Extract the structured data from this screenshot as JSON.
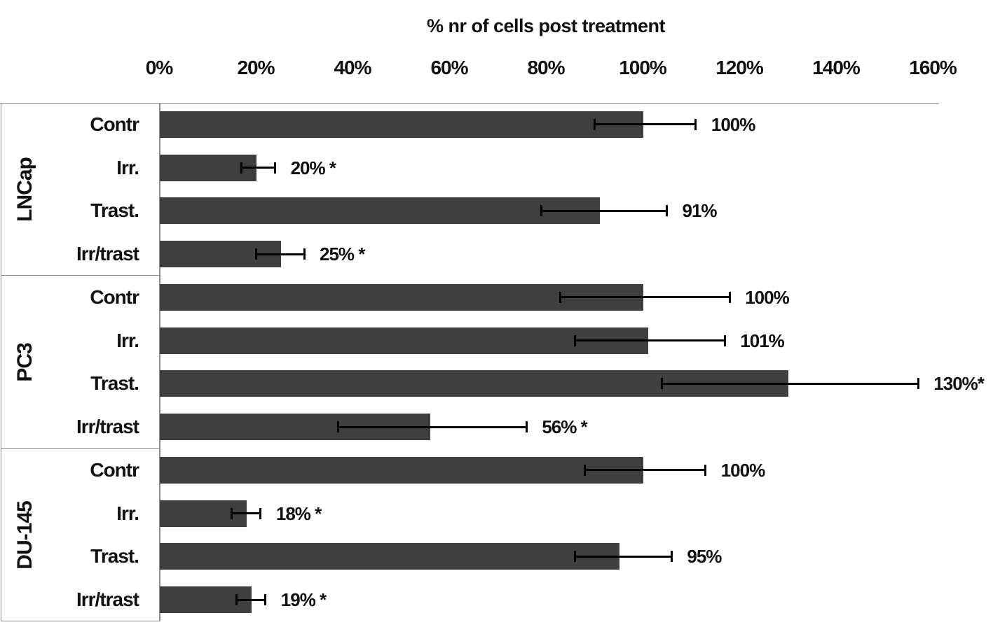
{
  "chart_data": {
    "type": "bar",
    "orientation": "horizontal",
    "title": "% nr of cells post treatment",
    "xlabel": "% nr of cells post treatment",
    "ylabel": "",
    "xlim": [
      0,
      160
    ],
    "grid": false,
    "legend": "none",
    "x_axis": {
      "ticks": [
        "0%",
        "20%",
        "40%",
        "60%",
        "80%",
        "100%",
        "120%",
        "140%",
        "160%"
      ],
      "values": [
        0,
        20,
        40,
        60,
        80,
        100,
        120,
        140,
        160
      ]
    },
    "groups": [
      {
        "name": "LNCap",
        "rows": [
          {
            "category": "Contr",
            "value": 100,
            "err_lo": 90,
            "err_hi": 111,
            "label": "100%"
          },
          {
            "category": "Irr.",
            "value": 20,
            "err_lo": 17,
            "err_hi": 24,
            "label": "20% *"
          },
          {
            "category": "Trast.",
            "value": 91,
            "err_lo": 79,
            "err_hi": 105,
            "label": "91%"
          },
          {
            "category": "Irr/trast",
            "value": 25,
            "err_lo": 20,
            "err_hi": 30,
            "label": "25% *"
          }
        ]
      },
      {
        "name": "PC3",
        "rows": [
          {
            "category": "Contr",
            "value": 100,
            "err_lo": 83,
            "err_hi": 118,
            "label": "100%"
          },
          {
            "category": "Irr.",
            "value": 101,
            "err_lo": 86,
            "err_hi": 117,
            "label": "101%"
          },
          {
            "category": "Trast.",
            "value": 130,
            "err_lo": 104,
            "err_hi": 157,
            "label": "130%*"
          },
          {
            "category": "Irr/trast",
            "value": 56,
            "err_lo": 37,
            "err_hi": 76,
            "label": "56% *"
          }
        ]
      },
      {
        "name": "DU-145",
        "rows": [
          {
            "category": "Contr",
            "value": 100,
            "err_lo": 88,
            "err_hi": 113,
            "label": "100%"
          },
          {
            "category": "Irr.",
            "value": 18,
            "err_lo": 15,
            "err_hi": 21,
            "label": "18% *"
          },
          {
            "category": "Trast.",
            "value": 95,
            "err_lo": 86,
            "err_hi": 106,
            "label": "95%"
          },
          {
            "category": "Irr/trast",
            "value": 19,
            "err_lo": 16,
            "err_hi": 22,
            "label": "19% *"
          }
        ]
      }
    ],
    "colors": {
      "bar": "#3f3f3f",
      "axis_line": "#8c8c8c",
      "error_bar": "#000000",
      "text": "#111111"
    }
  }
}
